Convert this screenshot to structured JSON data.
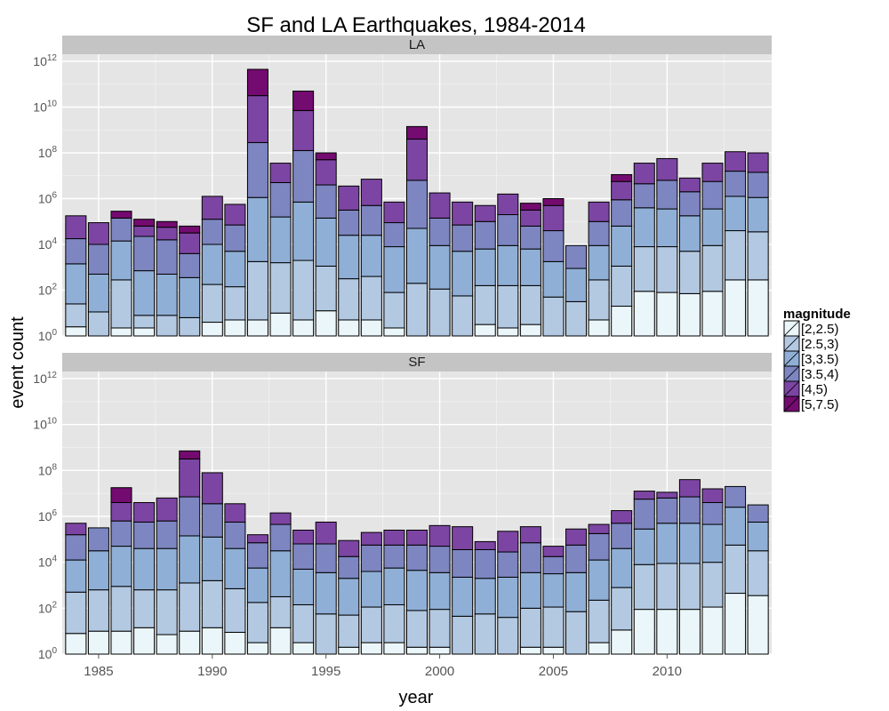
{
  "chart_data": {
    "type": "bar",
    "stacked": true,
    "title": "SF and LA Earthquakes, 1984-2014",
    "xlabel": "year",
    "ylabel": "event count",
    "yscale": "log10",
    "ylim": [
      1,
      1000000000000.0
    ],
    "y_ticks": [
      "10^0",
      "10^2",
      "10^4",
      "10^6",
      "10^8",
      "10^10",
      "10^12"
    ],
    "x_ticks": [
      1985,
      1990,
      1995,
      2000,
      2005,
      2010
    ],
    "grid": true,
    "legend_title": "magnitude",
    "legend_position": "right",
    "legend": [
      "[2,2.5)",
      "[2.5,3)",
      "[3,3.5)",
      "[3.5,4)",
      "[4,5)",
      "[5,7.5)"
    ],
    "colors": [
      "#eaf6f9",
      "#b3c9e2",
      "#8fafd6",
      "#7d86c1",
      "#7d45a3",
      "#740b70"
    ],
    "years": [
      1984,
      1985,
      1986,
      1987,
      1988,
      1989,
      1990,
      1991,
      1992,
      1993,
      1994,
      1995,
      1996,
      1997,
      1998,
      1999,
      2000,
      2001,
      2002,
      2003,
      2004,
      2005,
      2006,
      2007,
      2008,
      2009,
      2010,
      2011,
      2012,
      2013,
      2014
    ],
    "panels": [
      {
        "name": "LA",
        "cumulative_log10": [
          [
            0.4,
            1.4,
            3.15,
            4.25,
            5.25,
            null
          ],
          [
            null,
            1.05,
            2.7,
            4.0,
            4.95,
            null
          ],
          [
            0.35,
            2.45,
            4.15,
            5.15,
            null,
            5.45
          ],
          [
            0.35,
            0.9,
            2.85,
            4.35,
            4.8,
            5.1
          ],
          [
            null,
            0.9,
            2.7,
            4.2,
            4.75,
            5.0
          ],
          [
            null,
            0.8,
            2.55,
            3.6,
            4.5,
            4.8
          ],
          [
            0.6,
            2.25,
            4.0,
            5.1,
            6.1,
            null
          ],
          [
            0.7,
            2.15,
            3.7,
            4.85,
            5.75,
            null
          ],
          [
            0.7,
            3.25,
            6.05,
            8.45,
            10.5,
            11.65
          ],
          [
            1.0,
            3.2,
            5.2,
            6.7,
            7.55,
            null
          ],
          [
            0.7,
            3.3,
            5.85,
            8.1,
            9.85,
            10.7
          ],
          [
            1.1,
            3.05,
            5.15,
            6.6,
            7.7,
            8.0
          ],
          [
            0.7,
            2.5,
            4.4,
            5.5,
            6.55,
            null
          ],
          [
            0.7,
            2.6,
            4.4,
            5.7,
            6.85,
            null
          ],
          [
            0.35,
            1.9,
            3.9,
            4.95,
            5.85,
            null
          ],
          [
            null,
            2.3,
            4.7,
            6.8,
            8.6,
            9.15
          ],
          [
            null,
            2.05,
            3.95,
            5.15,
            6.25,
            null
          ],
          [
            null,
            1.75,
            3.7,
            4.85,
            5.85,
            null
          ],
          [
            0.5,
            2.2,
            3.8,
            5.0,
            5.7,
            null
          ],
          [
            0.35,
            2.2,
            3.95,
            5.3,
            6.2,
            null
          ],
          [
            0.5,
            2.2,
            3.8,
            4.8,
            5.5,
            5.8
          ],
          [
            null,
            1.7,
            3.25,
            4.6,
            5.7,
            6.0
          ],
          [
            null,
            1.5,
            2.95,
            3.95,
            null,
            null
          ],
          [
            0.7,
            2.45,
            3.95,
            5.0,
            5.85,
            null
          ],
          [
            1.3,
            3.05,
            4.8,
            5.95,
            6.75,
            7.05
          ],
          [
            1.95,
            3.9,
            5.6,
            6.65,
            7.55,
            null
          ],
          [
            1.9,
            3.9,
            5.55,
            6.8,
            7.75,
            null
          ],
          [
            1.85,
            3.7,
            5.25,
            6.3,
            6.9,
            null
          ],
          [
            1.95,
            3.95,
            5.55,
            6.75,
            7.55,
            null
          ],
          [
            2.45,
            4.6,
            6.1,
            7.2,
            8.05,
            null
          ],
          [
            2.45,
            4.55,
            6.05,
            7.15,
            8.0,
            null
          ]
        ]
      },
      {
        "name": "SF",
        "cumulative_log10": [
          [
            0.9,
            2.7,
            4.1,
            5.2,
            5.7,
            null
          ],
          [
            1.0,
            2.8,
            4.5,
            5.5,
            null,
            null
          ],
          [
            1.0,
            2.95,
            4.7,
            5.8,
            6.6,
            7.25
          ],
          [
            1.15,
            2.8,
            4.6,
            5.75,
            6.6,
            null
          ],
          [
            0.85,
            2.8,
            4.6,
            5.8,
            6.8,
            null
          ],
          [
            1.0,
            3.1,
            5.15,
            6.85,
            8.5,
            8.85
          ],
          [
            1.15,
            3.2,
            5.1,
            6.55,
            7.9,
            null
          ],
          [
            0.95,
            2.85,
            4.6,
            5.75,
            6.55,
            null
          ],
          [
            0.5,
            2.25,
            3.75,
            4.85,
            5.2,
            null
          ],
          [
            1.15,
            2.5,
            4.5,
            5.65,
            6.15,
            null
          ],
          [
            0.5,
            2.15,
            3.7,
            4.8,
            5.4,
            null
          ],
          [
            null,
            1.75,
            3.55,
            4.8,
            5.75,
            null
          ],
          [
            0.3,
            1.7,
            3.3,
            4.25,
            4.95,
            null
          ],
          [
            0.5,
            2.05,
            3.6,
            4.75,
            5.3,
            null
          ],
          [
            0.5,
            2.15,
            3.75,
            4.75,
            5.4,
            null
          ],
          [
            0.3,
            1.9,
            3.65,
            4.75,
            5.4,
            null
          ],
          [
            0.3,
            1.95,
            3.55,
            4.7,
            5.6,
            null
          ],
          [
            null,
            1.65,
            3.35,
            4.55,
            5.55,
            null
          ],
          [
            null,
            1.75,
            3.3,
            4.55,
            4.9,
            null
          ],
          [
            null,
            1.6,
            3.35,
            4.45,
            5.35,
            null
          ],
          [
            0.3,
            2.0,
            3.55,
            4.85,
            5.55,
            null
          ],
          [
            0.3,
            2.05,
            3.5,
            4.25,
            4.7,
            null
          ],
          [
            null,
            1.85,
            3.55,
            4.75,
            5.45,
            null
          ],
          [
            0.5,
            2.35,
            4.1,
            5.25,
            5.65,
            null
          ],
          [
            1.05,
            2.9,
            4.6,
            5.7,
            6.25,
            null
          ],
          [
            1.95,
            3.9,
            5.45,
            6.75,
            7.1,
            null
          ],
          [
            1.95,
            3.95,
            5.7,
            6.8,
            7.05,
            null
          ],
          [
            1.95,
            3.95,
            5.7,
            6.85,
            7.6,
            null
          ],
          [
            2.05,
            4.0,
            5.65,
            6.6,
            7.2,
            null
          ],
          [
            2.65,
            4.75,
            6.4,
            7.3,
            null,
            null
          ],
          [
            2.55,
            4.5,
            5.75,
            6.5,
            null,
            null
          ]
        ]
      }
    ]
  }
}
